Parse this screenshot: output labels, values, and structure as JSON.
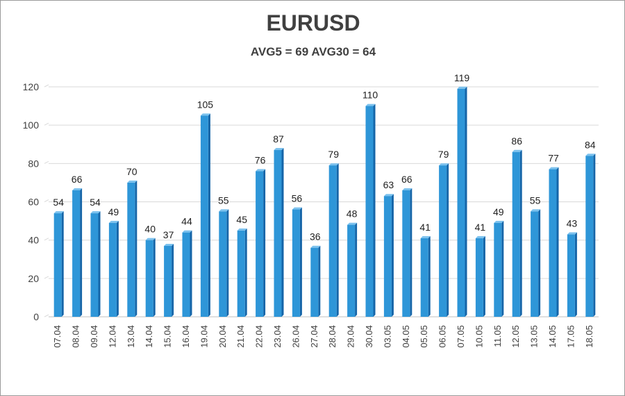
{
  "chart_data": {
    "type": "bar",
    "title": "EURUSD",
    "subtitle": "AVG5 = 69 AVG30 = 64",
    "categories": [
      "07.04",
      "08.04",
      "09.04",
      "12.04",
      "13.04",
      "14.04",
      "15.04",
      "16.04",
      "19.04",
      "20.04",
      "21.04",
      "22.04",
      "23.04",
      "26.04",
      "27.04",
      "28.04",
      "29.04",
      "30.04",
      "03.05",
      "04.05",
      "05.05",
      "06.05",
      "07.05",
      "10.05",
      "11.05",
      "12.05",
      "13.05",
      "14.05",
      "17.05",
      "18.05"
    ],
    "values": [
      54,
      66,
      54,
      49,
      70,
      40,
      37,
      44,
      105,
      55,
      45,
      76,
      87,
      56,
      36,
      79,
      48,
      110,
      63,
      66,
      41,
      79,
      119,
      41,
      49,
      86,
      55,
      77,
      43,
      84
    ],
    "yticks": [
      0,
      20,
      40,
      60,
      80,
      100,
      120
    ],
    "ylim": [
      0,
      120
    ],
    "grid": true,
    "legend": "none",
    "colors": {
      "bar_front": "#2e96d8",
      "bar_side": "#1565a8",
      "bar_top": "#7cc2ee",
      "grid": "#d9d9d9"
    }
  }
}
